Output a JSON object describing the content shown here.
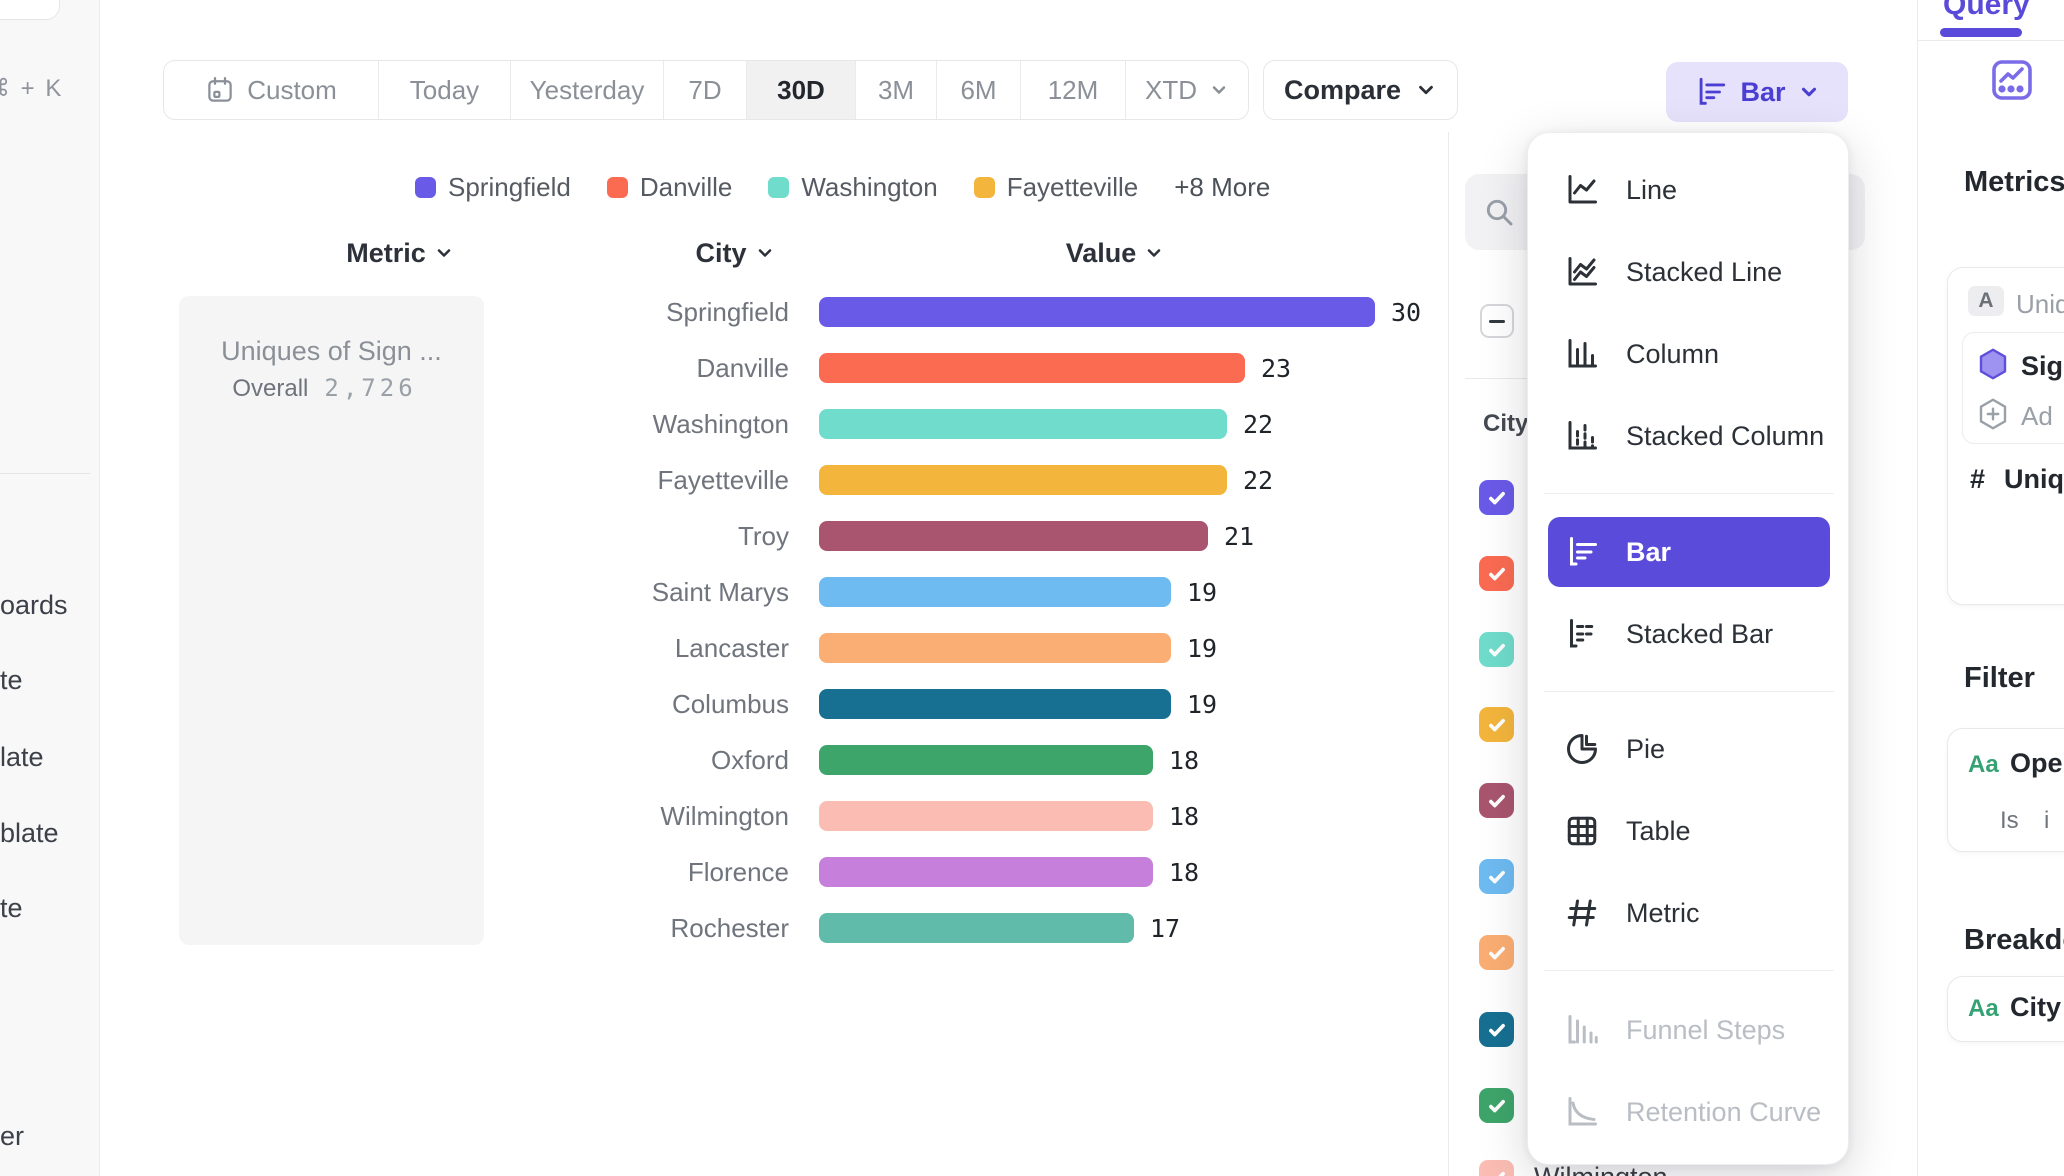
{
  "left_nav": {
    "shortcut": "⌘ + K",
    "fragments": [
      "oards",
      "te",
      "late",
      "blate",
      "te",
      "er"
    ]
  },
  "toolbar": {
    "ranges": [
      {
        "label": "Custom"
      },
      {
        "label": "Today"
      },
      {
        "label": "Yesterday"
      },
      {
        "label": "7D"
      },
      {
        "label": "30D"
      },
      {
        "label": "3M"
      },
      {
        "label": "6M"
      },
      {
        "label": "12M"
      },
      {
        "label": "XTD"
      }
    ],
    "selected_range": "30D",
    "compare_label": "Compare",
    "chart_type_label": "Bar"
  },
  "legend": {
    "items": [
      {
        "label": "Springfield",
        "color": "#6a5ae8"
      },
      {
        "label": "Danville",
        "color": "#fa6b52"
      },
      {
        "label": "Washington",
        "color": "#70dccb"
      },
      {
        "label": "Fayetteville",
        "color": "#f3b53c"
      }
    ],
    "more_label": "+8 More"
  },
  "columns": {
    "metric": "Metric",
    "city": "City",
    "value": "Value"
  },
  "metric_panel": {
    "title": "Uniques of Sign ...",
    "overall_label": "Overall",
    "overall_value": "2,726"
  },
  "chart_data": {
    "type": "bar",
    "title": "Uniques of Sign ... by City",
    "categories": [
      "Springfield",
      "Danville",
      "Washington",
      "Fayetteville",
      "Troy",
      "Saint Marys",
      "Lancaster",
      "Columbus",
      "Oxford",
      "Wilmington",
      "Florence",
      "Rochester"
    ],
    "values": [
      30,
      23,
      22,
      22,
      21,
      19,
      19,
      19,
      18,
      18,
      18,
      17
    ],
    "colors": [
      "#6a5ae8",
      "#fa6b52",
      "#70dccb",
      "#f3b53c",
      "#a9556f",
      "#6ebbf1",
      "#fbae73",
      "#177092",
      "#3ea56a",
      "#fbbdb3",
      "#c77fdc",
      "#61bbab"
    ],
    "max": 30,
    "xlabel": "Value",
    "ylabel": "City",
    "legend_position": "top",
    "grid": false
  },
  "breakdown_panel": {
    "column_label": "City",
    "select_all_state": "indeterminate",
    "checkbox_colors": [
      "#6a5ae8",
      "#fa6b52",
      "#70dccb",
      "#f3b53c",
      "#a9556f",
      "#6ebbf1",
      "#fbae73",
      "#177092",
      "#3ea56a",
      "#fbbdb3"
    ],
    "partial_row_label": "Wilmington"
  },
  "menu": {
    "items": [
      {
        "label": "Line"
      },
      {
        "label": "Stacked Line"
      },
      {
        "label": "Column"
      },
      {
        "label": "Stacked Column"
      },
      {
        "label": "Bar",
        "selected": true
      },
      {
        "label": "Stacked Bar"
      },
      {
        "label": "Pie"
      },
      {
        "label": "Table"
      },
      {
        "label": "Metric"
      },
      {
        "label": "Funnel Steps",
        "disabled": true
      },
      {
        "label": "Retention Curve",
        "disabled": true
      }
    ]
  },
  "sidebar": {
    "tab_label": "Query",
    "metrics_heading": "Metrics",
    "metric_badge": "A",
    "metric_name_fragment": "Uniq",
    "sign_fragment": "Sig",
    "add_fragment": "Ad",
    "hash_symbol": "#",
    "unique_fragment": "Uniqu",
    "filter_heading": "Filter",
    "aa_label": "Aa",
    "filter_name_fragment": "Ope",
    "filter_operator": "Is",
    "filter_value_fragment": "i",
    "breakdown_heading": "Breakdo",
    "breakdown_value": "City"
  }
}
